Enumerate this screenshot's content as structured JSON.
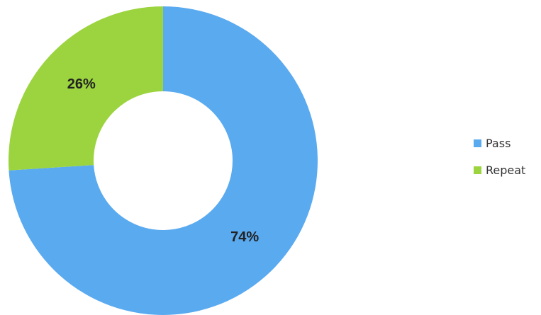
{
  "chart_data": {
    "type": "pie",
    "variant": "donut",
    "title": "",
    "categories": [
      "Pass",
      "Repeat"
    ],
    "values": [
      74,
      26
    ],
    "value_labels": [
      "74%",
      "26%"
    ],
    "colors": [
      "#5aaaf0",
      "#9bd43f"
    ],
    "legend": {
      "placement": "right",
      "entries": [
        "Pass",
        "Repeat"
      ]
    },
    "start_angle": "12 o'clock",
    "direction": "clockwise"
  }
}
